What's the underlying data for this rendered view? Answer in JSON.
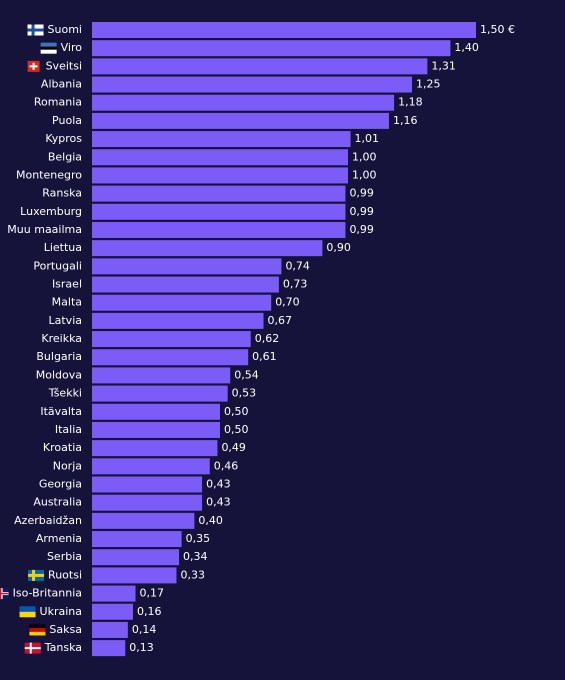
{
  "chart_data": {
    "type": "bar",
    "orientation": "horizontal",
    "color": "#7c5cf6",
    "categories": [
      "Suomi",
      "Viro",
      "Sveitsi",
      "Albania",
      "Romania",
      "Puola",
      "Kypros",
      "Belgia",
      "Montenegro",
      "Ranska",
      "Luxemburg",
      "Muu maailma",
      "Liettua",
      "Portugali",
      "Israel",
      "Malta",
      "Latvia",
      "Kreikka",
      "Bulgaria",
      "Moldova",
      "Tšekki",
      "Itävalta",
      "Italia",
      "Kroatia",
      "Norja",
      "Georgia",
      "Australia",
      "Azerbaidžan",
      "Armenia",
      "Serbia",
      "Ruotsi",
      "Iso-Britannia",
      "Ukraina",
      "Saksa",
      "Tanska"
    ],
    "values": [
      1.5,
      1.4,
      1.31,
      1.25,
      1.18,
      1.16,
      1.01,
      1.0,
      1.0,
      0.99,
      0.99,
      0.99,
      0.9,
      0.74,
      0.73,
      0.7,
      0.67,
      0.62,
      0.61,
      0.54,
      0.53,
      0.5,
      0.5,
      0.49,
      0.46,
      0.43,
      0.43,
      0.4,
      0.35,
      0.34,
      0.33,
      0.17,
      0.16,
      0.14,
      0.13
    ],
    "value_labels": [
      "1,50 €",
      "1,40",
      "1,31",
      "1,25",
      "1,18",
      "1,16",
      "1,01",
      "1,00",
      "1,00",
      "0,99",
      "0,99",
      "0,99",
      "0,90",
      "0,74",
      "0,73",
      "0,70",
      "0,67",
      "0,62",
      "0,61",
      "0,54",
      "0,53",
      "0,50",
      "0,50",
      "0,49",
      "0,46",
      "0,43",
      "0,43",
      "0,40",
      "0,35",
      "0,34",
      "0,33",
      "0,17",
      "0,16",
      "0,14",
      "0,13"
    ]
  }
}
